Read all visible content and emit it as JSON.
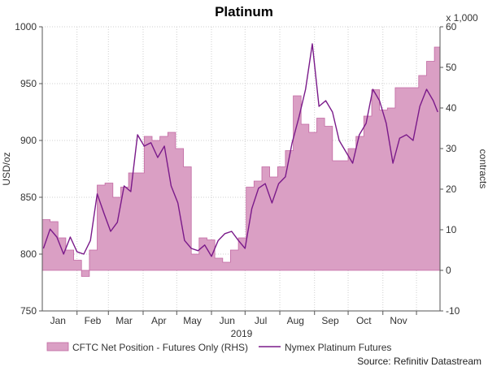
{
  "chart_data": {
    "type": "line",
    "title": "Platinum",
    "year_label": "2019",
    "source": "Source: Refinitiv Datastream",
    "x_tick_labels": [
      "Jan",
      "Feb",
      "Mar",
      "Apr",
      "May",
      "Jun",
      "Jul",
      "Aug",
      "Sep",
      "Oct",
      "Nov"
    ],
    "left_axis": {
      "label": "USD/oz",
      "range": [
        750,
        1000
      ],
      "ticks": [
        750,
        800,
        850,
        900,
        950,
        1000
      ]
    },
    "right_axis": {
      "label": "contracts",
      "unit_label": "x 1,000",
      "range": [
        -10,
        60
      ],
      "ticks": [
        -10,
        0,
        10,
        20,
        30,
        40,
        50,
        60
      ]
    },
    "grid": true,
    "legend_position": "bottom",
    "colors": {
      "area_fill": "#da9fc4",
      "area_stroke": "#c26aa3",
      "line": "#7a1a8a",
      "grid": "#cfcfcf"
    },
    "series": [
      {
        "name": "CFTC Net Position - Futures Only (RHS)",
        "kind": "area",
        "axis": "right",
        "x": [
          "2019-01-01",
          "2019-01-08",
          "2019-01-15",
          "2019-01-22",
          "2019-01-29",
          "2019-02-05",
          "2019-02-12",
          "2019-02-19",
          "2019-02-26",
          "2019-03-05",
          "2019-03-12",
          "2019-03-19",
          "2019-03-26",
          "2019-04-02",
          "2019-04-09",
          "2019-04-16",
          "2019-04-23",
          "2019-04-30",
          "2019-05-07",
          "2019-05-14",
          "2019-05-21",
          "2019-05-28",
          "2019-06-04",
          "2019-06-11",
          "2019-06-18",
          "2019-06-25",
          "2019-07-02",
          "2019-07-09",
          "2019-07-16",
          "2019-07-23",
          "2019-07-30",
          "2019-08-06",
          "2019-08-13",
          "2019-08-20",
          "2019-08-27",
          "2019-09-03",
          "2019-09-10",
          "2019-09-17",
          "2019-09-24",
          "2019-10-01",
          "2019-10-08",
          "2019-10-15",
          "2019-10-22",
          "2019-10-29",
          "2019-11-05",
          "2019-11-12",
          "2019-11-19",
          "2019-11-26",
          "2019-12-03",
          "2019-12-10",
          "2019-12-17"
        ],
        "y": [
          12.5,
          12,
          8,
          5,
          2.5,
          -1.5,
          5,
          21,
          21.5,
          18,
          20.5,
          24,
          24,
          33,
          32,
          33,
          34,
          30,
          25.5,
          4,
          8,
          7.5,
          3,
          2,
          5,
          8,
          20.5,
          22,
          25.5,
          23,
          25.5,
          29.5,
          43,
          36,
          34,
          37.5,
          35.5,
          27,
          27,
          30,
          33,
          38,
          44.5,
          39.5,
          40,
          45,
          45,
          45,
          48,
          51.5,
          55
        ]
      },
      {
        "name": "Nymex Platinum Futures",
        "kind": "line",
        "axis": "left",
        "x": [
          "2019-01-02",
          "2019-01-08",
          "2019-01-14",
          "2019-01-20",
          "2019-01-26",
          "2019-02-01",
          "2019-02-07",
          "2019-02-13",
          "2019-02-19",
          "2019-02-25",
          "2019-03-03",
          "2019-03-09",
          "2019-03-15",
          "2019-03-21",
          "2019-03-27",
          "2019-04-02",
          "2019-04-08",
          "2019-04-14",
          "2019-04-20",
          "2019-04-26",
          "2019-05-02",
          "2019-05-08",
          "2019-05-14",
          "2019-05-20",
          "2019-05-26",
          "2019-06-01",
          "2019-06-07",
          "2019-06-13",
          "2019-06-19",
          "2019-06-25",
          "2019-07-01",
          "2019-07-07",
          "2019-07-13",
          "2019-07-19",
          "2019-07-25",
          "2019-07-31",
          "2019-08-06",
          "2019-08-12",
          "2019-08-18",
          "2019-08-24",
          "2019-08-30",
          "2019-09-05",
          "2019-09-11",
          "2019-09-17",
          "2019-09-23",
          "2019-09-29",
          "2019-10-05",
          "2019-10-11",
          "2019-10-17",
          "2019-10-23",
          "2019-10-29",
          "2019-11-04",
          "2019-11-10",
          "2019-11-16",
          "2019-11-22",
          "2019-11-28",
          "2019-12-04",
          "2019-12-10",
          "2019-12-16",
          "2019-12-20"
        ],
        "y": [
          805,
          822,
          815,
          800,
          815,
          802,
          800,
          812,
          853,
          836,
          820,
          828,
          860,
          855,
          905,
          895,
          898,
          885,
          895,
          860,
          845,
          812,
          805,
          803,
          808,
          798,
          812,
          818,
          820,
          812,
          805,
          840,
          858,
          862,
          845,
          862,
          868,
          898,
          920,
          945,
          985,
          930,
          935,
          925,
          900,
          890,
          880,
          905,
          915,
          945,
          935,
          915,
          880,
          902,
          905,
          900,
          930,
          945,
          935,
          925
        ]
      }
    ]
  }
}
